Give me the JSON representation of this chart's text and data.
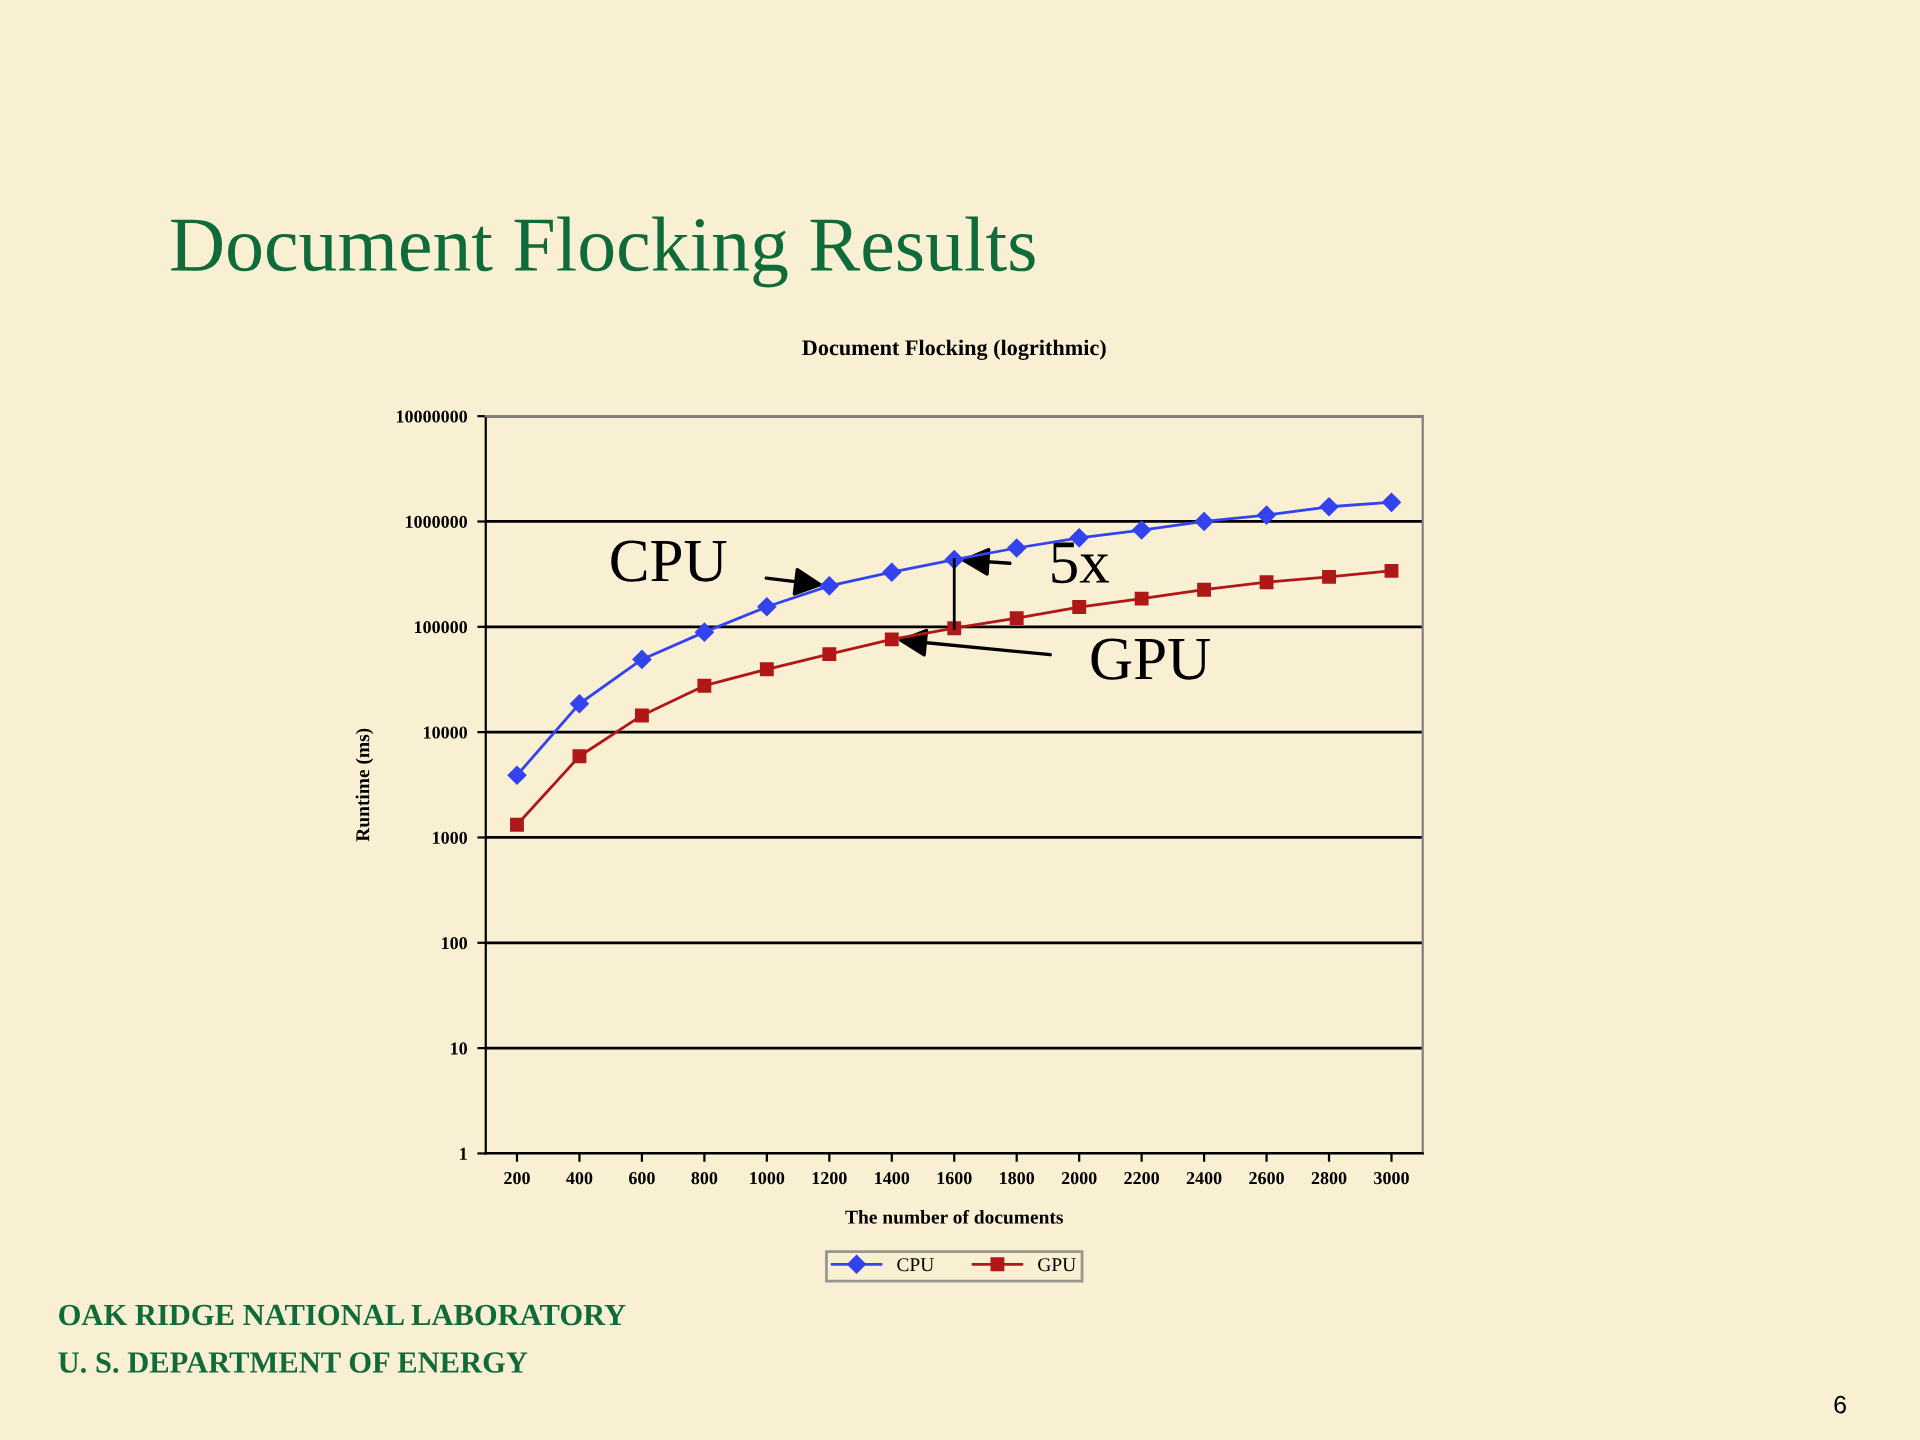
{
  "chart_data": {
    "type": "line",
    "title": "Document Flocking Results",
    "subtitle": "Document Flocking (logrithmic)",
    "xlabel": "The number of documents",
    "ylabel": "Runtime (ms)",
    "categories": [
      "200",
      "400",
      "600",
      "800",
      "1000",
      "1200",
      "1400",
      "1600",
      "1800",
      "2000",
      "2200",
      "2400",
      "2600",
      "2800",
      "3000"
    ],
    "series": [
      {
        "name": "CPU",
        "color": "#3344ee",
        "marker": "diamond",
        "values": [
          3900,
          18600,
          49000,
          89000,
          155000,
          245000,
          330000,
          435000,
          560000,
          700000,
          830000,
          1000000,
          1150000,
          1380000,
          1520000
        ]
      },
      {
        "name": "GPU",
        "color": "#b01818",
        "marker": "square",
        "values": [
          1320,
          5900,
          14400,
          27600,
          39500,
          55000,
          76000,
          97000,
          121000,
          154000,
          185000,
          225000,
          265000,
          298000,
          340000
        ]
      }
    ],
    "log": true,
    "ylim": [
      1,
      10000000
    ],
    "yticks": [
      1,
      10,
      100,
      1000,
      10000,
      100000,
      1000000,
      10000000
    ],
    "grid": "y",
    "legend": "bottom",
    "line_style": "solid",
    "annotations": [
      {
        "text": "CPU",
        "x": "1200",
        "y": 245000
      },
      {
        "text": "5x",
        "x": "1600",
        "y": 435000
      },
      {
        "text": "GPU",
        "x": "1400",
        "y": 76000
      },
      "OAK RIDGE NATIONAL LABORATORY",
      "U. S. DEPARTMENT OF ENERGY",
      "6"
    ]
  }
}
